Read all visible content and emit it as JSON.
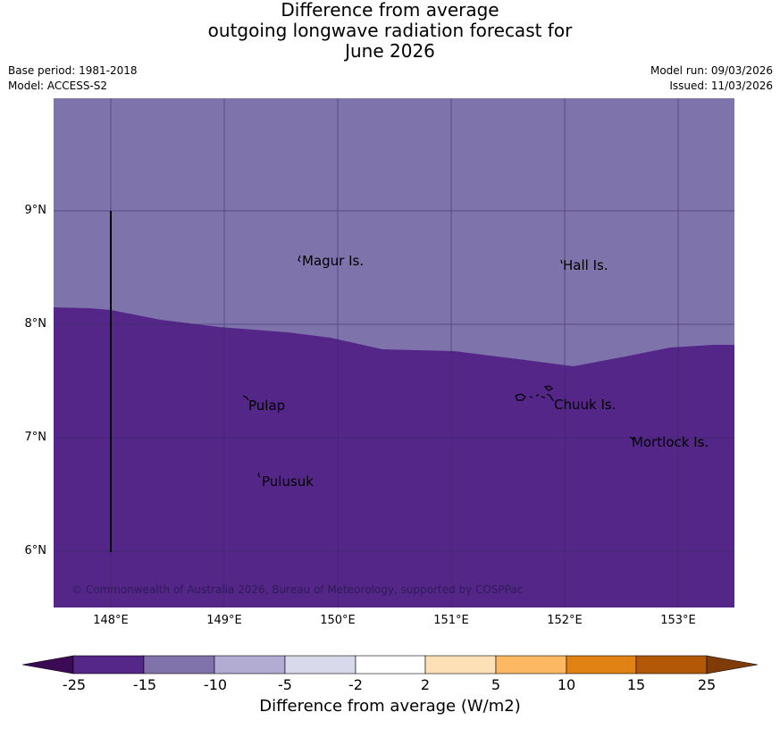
{
  "title": {
    "line1": "Difference from average",
    "line2": "outgoing longwave radiation forecast for",
    "line3": "June 2026"
  },
  "meta": {
    "base_period": "Base period: 1981-2018",
    "model": "Model: ACCESS-S2",
    "model_run": "Model run: 09/03/2026",
    "issued": "Issued: 11/03/2026"
  },
  "map": {
    "lat_labels": [
      "9°N",
      "8°N",
      "7°N",
      "6°N"
    ],
    "lon_labels": [
      "148°E",
      "149°E",
      "150°E",
      "151°E",
      "152°E",
      "153°E"
    ],
    "places": [
      "Magur Is.",
      "Hall Is.",
      "Pulap",
      "Chuuk Is.",
      "Mortlock Is.",
      "Pulusuk"
    ],
    "copyright": "© Commonwealth of Australia 2026, Bureau of Meteorology, supported by COSPPac",
    "colors": {
      "upper_region": "#7e73ab",
      "lower_region": "#532687",
      "gridline": "#3d2a66"
    }
  },
  "colorbar": {
    "ticks": [
      "-25",
      "-15",
      "-10",
      "-5",
      "-2",
      "2",
      "5",
      "10",
      "15",
      "25"
    ],
    "label": "Difference from average (W/m2)",
    "colors": [
      "#3b0a55",
      "#542788",
      "#8073ac",
      "#b2abd2",
      "#d8daeb",
      "#ffffff",
      "#fee0b6",
      "#fdb863",
      "#e08214",
      "#b35806",
      "#7f3b08"
    ]
  }
}
